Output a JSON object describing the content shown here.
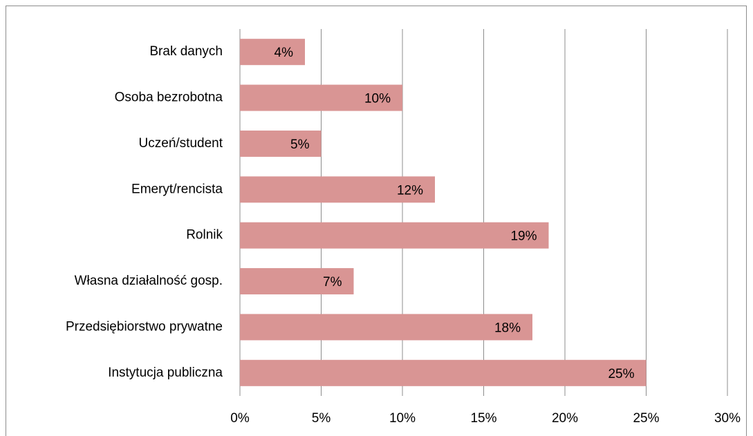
{
  "chart_data": {
    "type": "hbar",
    "categories": [
      "Brak danych",
      "Osoba bezrobotna",
      "Uczeń/student",
      "Emeryt/rencista",
      "Rolnik",
      "Własna działalność gosp.",
      "Przedsiębiorstwo prywatne",
      "Instytucja publiczna"
    ],
    "values": [
      4,
      10,
      5,
      12,
      19,
      7,
      18,
      25
    ],
    "value_labels": [
      "4%",
      "10%",
      "5%",
      "12%",
      "19%",
      "7%",
      "18%",
      "25%"
    ],
    "color": "#d99594",
    "xlim": [
      0,
      30
    ],
    "xticks": [
      {
        "value": 0,
        "label": "0%"
      },
      {
        "value": 5,
        "label": "5%"
      },
      {
        "value": 10,
        "label": "10%"
      },
      {
        "value": 15,
        "label": "15%"
      },
      {
        "value": 20,
        "label": "20%"
      },
      {
        "value": 25,
        "label": "25%"
      },
      {
        "value": 30,
        "label": "30%"
      }
    ],
    "grid": true
  }
}
